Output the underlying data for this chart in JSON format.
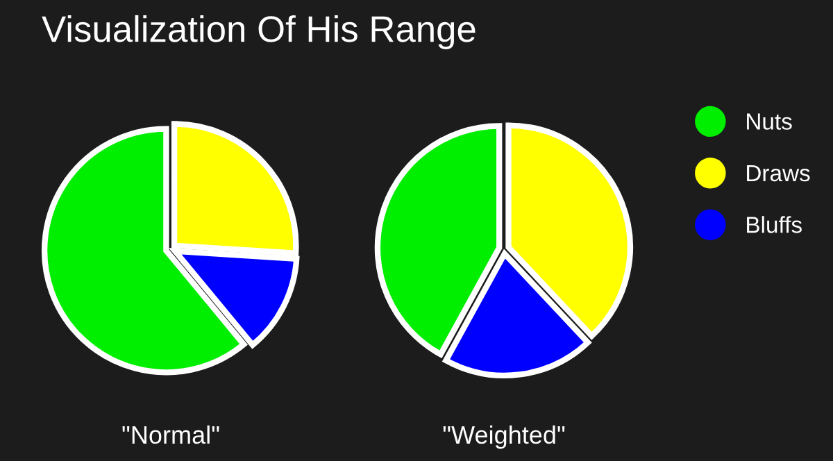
{
  "chart_data": [
    {
      "type": "pie",
      "title": "Visualization Of His Range",
      "xlabel": "\"Normal\"",
      "categories": [
        "Nuts",
        "Draws",
        "Bluffs"
      ],
      "values": [
        61,
        26,
        13
      ],
      "colors": [
        "#00ee00",
        "#ffff00",
        "#0000ff"
      ],
      "legend": "right"
    },
    {
      "type": "pie",
      "xlabel": "\"Weighted\"",
      "categories": [
        null,
        null,
        null
      ],
      "values": [
        42,
        38,
        20
      ],
      "colors": [
        "#00ee00",
        "#ffff00",
        "#0000ff"
      ]
    }
  ]
}
